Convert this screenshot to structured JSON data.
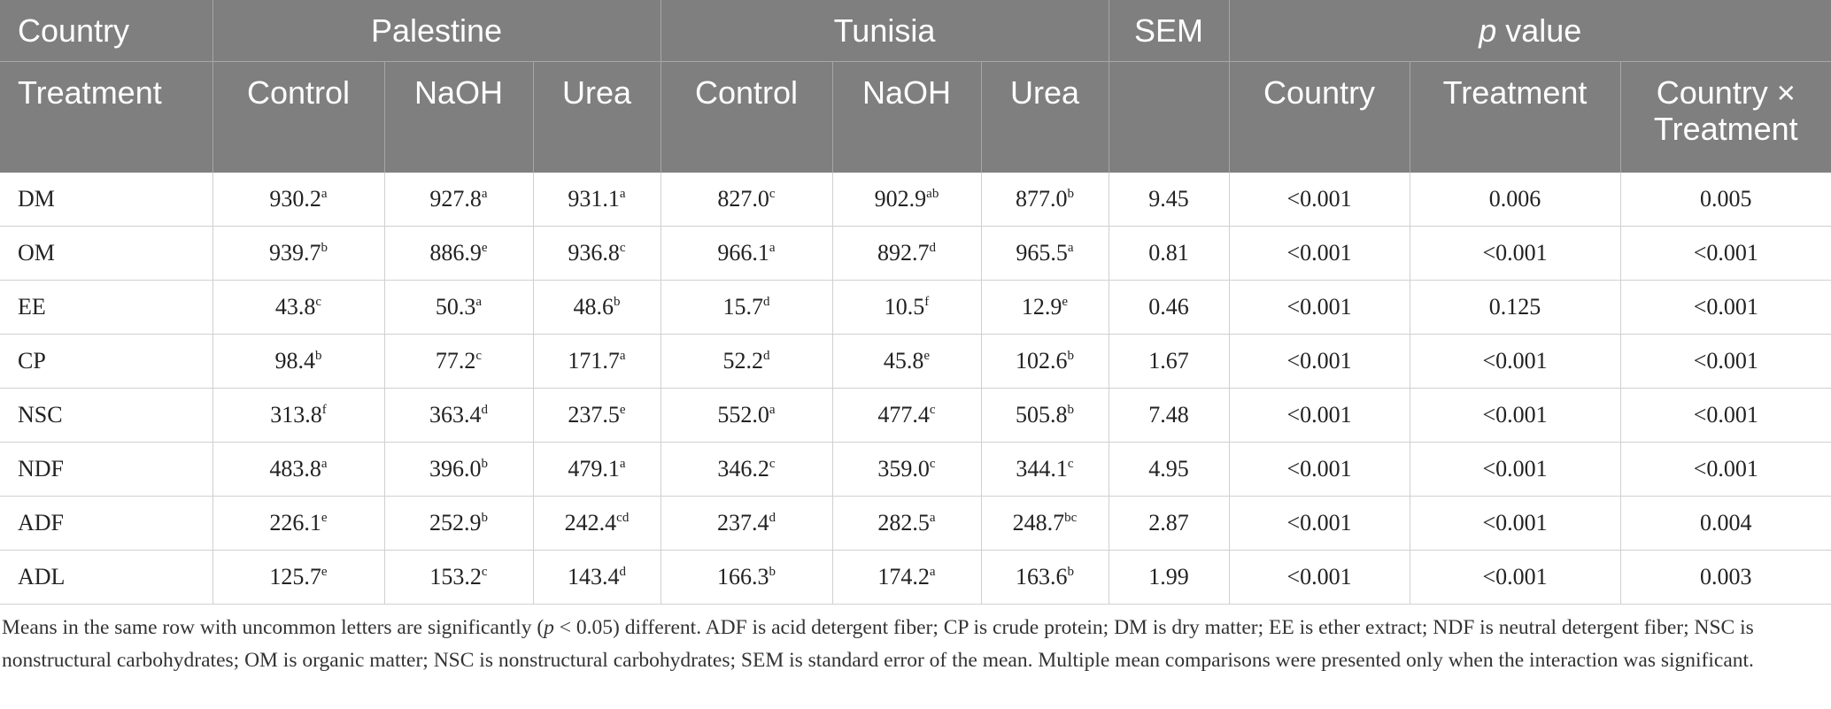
{
  "header": {
    "country_label": "Country",
    "treatment_label": "Treatment",
    "groups": [
      "Palestine",
      "Tunisia"
    ],
    "sem_label": "SEM",
    "pvalue_italic": "p",
    "pvalue_rest": " value",
    "treatments": [
      "Control",
      "NaOH",
      "Urea",
      "Control",
      "NaOH",
      "Urea"
    ],
    "pvalue_cols": [
      "Country",
      "Treatment",
      "Country × Treatment"
    ]
  },
  "rows": [
    {
      "label": "DM",
      "cells": [
        [
          "930.2",
          "a"
        ],
        [
          "927.8",
          "a"
        ],
        [
          "931.1",
          "a"
        ],
        [
          "827.0",
          "c"
        ],
        [
          "902.9",
          "ab"
        ],
        [
          "877.0",
          "b"
        ]
      ],
      "sem": "9.45",
      "p": [
        "<0.001",
        "0.006",
        "0.005"
      ]
    },
    {
      "label": "OM",
      "cells": [
        [
          "939.7",
          "b"
        ],
        [
          "886.9",
          "e"
        ],
        [
          "936.8",
          "c"
        ],
        [
          "966.1",
          "a"
        ],
        [
          "892.7",
          "d"
        ],
        [
          "965.5",
          "a"
        ]
      ],
      "sem": "0.81",
      "p": [
        "<0.001",
        "<0.001",
        "<0.001"
      ]
    },
    {
      "label": "EE",
      "cells": [
        [
          "43.8",
          "c"
        ],
        [
          "50.3",
          "a"
        ],
        [
          "48.6",
          "b"
        ],
        [
          "15.7",
          "d"
        ],
        [
          "10.5",
          "f"
        ],
        [
          "12.9",
          "e"
        ]
      ],
      "sem": "0.46",
      "p": [
        "<0.001",
        "0.125",
        "<0.001"
      ]
    },
    {
      "label": "CP",
      "cells": [
        [
          "98.4",
          "b"
        ],
        [
          "77.2",
          "c"
        ],
        [
          "171.7",
          "a"
        ],
        [
          "52.2",
          "d"
        ],
        [
          "45.8",
          "e"
        ],
        [
          "102.6",
          "b"
        ]
      ],
      "sem": "1.67",
      "p": [
        "<0.001",
        "<0.001",
        "<0.001"
      ]
    },
    {
      "label": "NSC",
      "cells": [
        [
          "313.8",
          "f"
        ],
        [
          "363.4",
          "d"
        ],
        [
          "237.5",
          "e"
        ],
        [
          "552.0",
          "a"
        ],
        [
          "477.4",
          "c"
        ],
        [
          "505.8",
          "b"
        ]
      ],
      "sem": "7.48",
      "p": [
        "<0.001",
        "<0.001",
        "<0.001"
      ]
    },
    {
      "label": "NDF",
      "cells": [
        [
          "483.8",
          "a"
        ],
        [
          "396.0",
          "b"
        ],
        [
          "479.1",
          "a"
        ],
        [
          "346.2",
          "c"
        ],
        [
          "359.0",
          "c"
        ],
        [
          "344.1",
          "c"
        ]
      ],
      "sem": "4.95",
      "p": [
        "<0.001",
        "<0.001",
        "<0.001"
      ]
    },
    {
      "label": "ADF",
      "cells": [
        [
          "226.1",
          "e"
        ],
        [
          "252.9",
          "b"
        ],
        [
          "242.4",
          "cd"
        ],
        [
          "237.4",
          "d"
        ],
        [
          "282.5",
          "a"
        ],
        [
          "248.7",
          "bc"
        ]
      ],
      "sem": "2.87",
      "p": [
        "<0.001",
        "<0.001",
        "0.004"
      ]
    },
    {
      "label": "ADL",
      "cells": [
        [
          "125.7",
          "e"
        ],
        [
          "153.2",
          "c"
        ],
        [
          "143.4",
          "d"
        ],
        [
          "166.3",
          "b"
        ],
        [
          "174.2",
          "a"
        ],
        [
          "163.6",
          "b"
        ]
      ],
      "sem": "1.99",
      "p": [
        "<0.001",
        "<0.001",
        "0.003"
      ]
    }
  ],
  "footnote": {
    "part1": "Means in the same row with uncommon letters are significantly (",
    "p_italic": "p",
    "part2": " < 0.05) different. ADF is acid detergent fiber; CP is crude protein; DM is dry matter; EE is ether extract; NDF is neutral detergent fiber; NSC is nonstructural carbohydrates; OM is organic matter; NSC is nonstructural carbohydrates; SEM is standard error of the mean. Multiple mean comparisons were presented only when the interaction was significant."
  }
}
